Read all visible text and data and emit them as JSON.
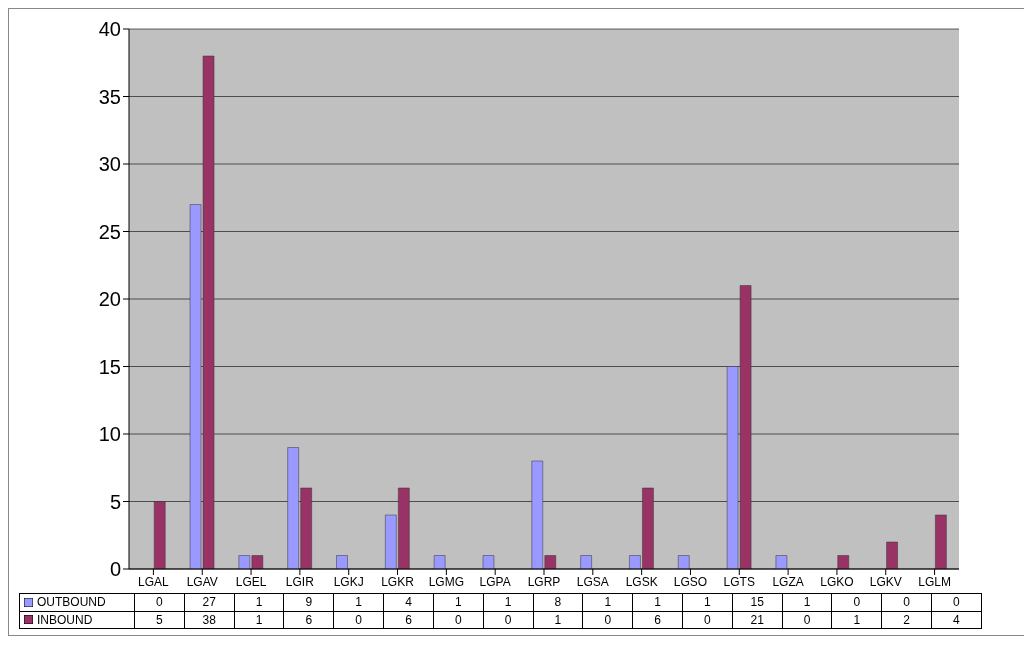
{
  "chart_data": {
    "type": "bar",
    "categories": [
      "LGAL",
      "LGAV",
      "LGEL",
      "LGIR",
      "LGKJ",
      "LGKR",
      "LGMG",
      "LGPA",
      "LGRP",
      "LGSA",
      "LGSK",
      "LGSO",
      "LGTS",
      "LGZA",
      "LGKO",
      "LGKV",
      "LGLM"
    ],
    "series": [
      {
        "name": "OUTBOUND",
        "color": "#9999ff",
        "values": [
          0,
          27,
          1,
          9,
          1,
          4,
          1,
          1,
          8,
          1,
          1,
          1,
          15,
          1,
          0,
          0,
          0
        ]
      },
      {
        "name": "INBOUND",
        "color": "#993366",
        "values": [
          5,
          38,
          1,
          6,
          0,
          6,
          0,
          0,
          1,
          0,
          6,
          0,
          21,
          0,
          1,
          2,
          4
        ]
      }
    ],
    "ylim": [
      0,
      40
    ],
    "yticks": [
      0,
      5,
      10,
      15,
      20,
      25,
      30,
      35,
      40
    ],
    "grid": "y",
    "legend": "bottom",
    "data_labels": true
  }
}
